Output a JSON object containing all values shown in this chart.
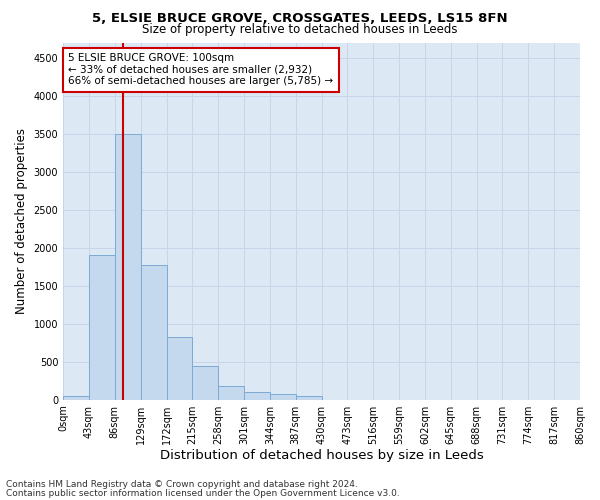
{
  "title_line1": "5, ELSIE BRUCE GROVE, CROSSGATES, LEEDS, LS15 8FN",
  "title_line2": "Size of property relative to detached houses in Leeds",
  "xlabel": "Distribution of detached houses by size in Leeds",
  "ylabel": "Number of detached properties",
  "bar_values": [
    50,
    1900,
    3500,
    1775,
    825,
    450,
    185,
    95,
    75,
    45,
    0,
    0,
    0,
    0,
    0,
    0,
    0,
    0,
    0,
    0
  ],
  "bar_labels": [
    "0sqm",
    "43sqm",
    "86sqm",
    "129sqm",
    "172sqm",
    "215sqm",
    "258sqm",
    "301sqm",
    "344sqm",
    "387sqm",
    "430sqm",
    "473sqm",
    "516sqm",
    "559sqm",
    "602sqm",
    "645sqm",
    "688sqm",
    "731sqm",
    "774sqm",
    "817sqm",
    "860sqm"
  ],
  "bar_color": "#c5d9ee",
  "bar_edge_color": "#7baad4",
  "vline_color": "#cc0000",
  "annotation_text": "5 ELSIE BRUCE GROVE: 100sqm\n← 33% of detached houses are smaller (2,932)\n66% of semi-detached houses are larger (5,785) →",
  "annotation_box_color": "#ffffff",
  "annotation_box_edge_color": "#cc0000",
  "ylim": [
    0,
    4700
  ],
  "yticks": [
    0,
    500,
    1000,
    1500,
    2000,
    2500,
    3000,
    3500,
    4000,
    4500
  ],
  "grid_color": "#c8d4e8",
  "background_color": "#dde8f5",
  "footer_line1": "Contains HM Land Registry data © Crown copyright and database right 2024.",
  "footer_line2": "Contains public sector information licensed under the Open Government Licence v3.0.",
  "title_fontsize": 9.5,
  "subtitle_fontsize": 8.5,
  "axis_label_fontsize": 8.5,
  "tick_fontsize": 7,
  "annotation_fontsize": 7.5,
  "footer_fontsize": 6.5
}
